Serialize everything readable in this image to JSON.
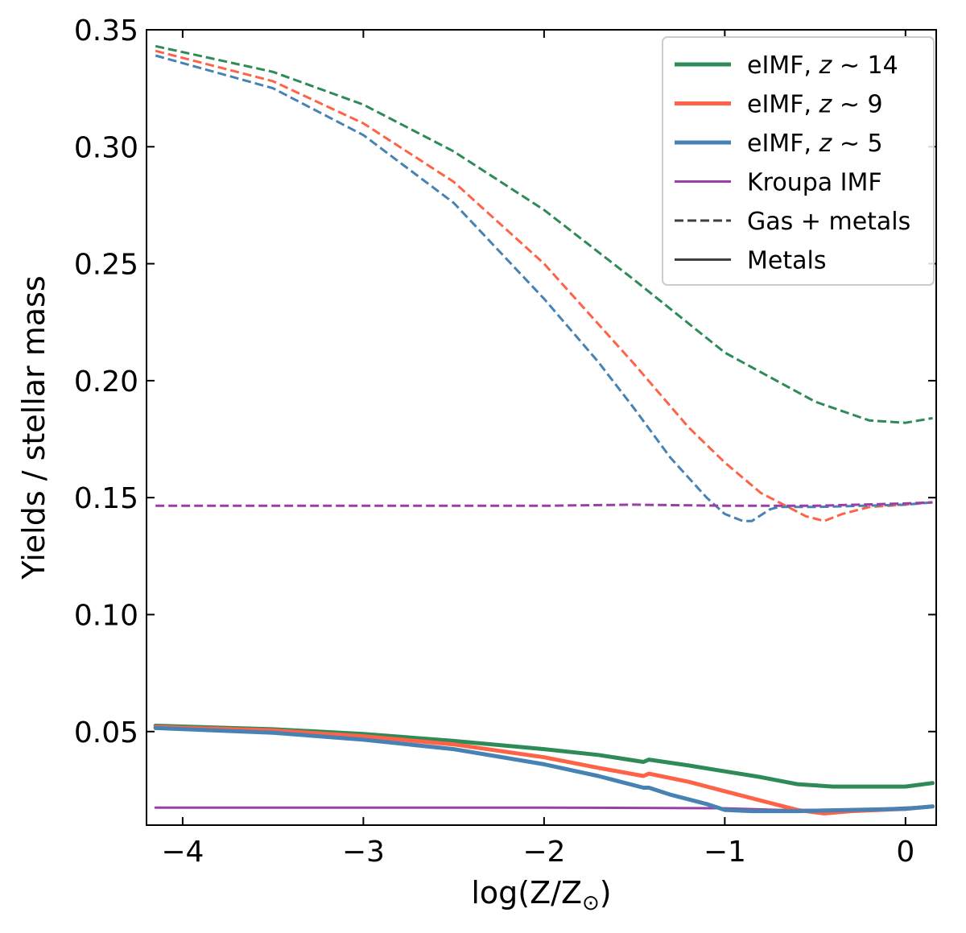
{
  "chart_data": {
    "type": "line",
    "xlabel": "log(Z/Z",
    "xlabel_sub": "⊙",
    "xlabel_close": ")",
    "ylabel": "Yields / stellar mass",
    "xlim": [
      -4.2,
      0.17
    ],
    "ylim": [
      0.01,
      0.35
    ],
    "x_ticks": [
      -4,
      -3,
      -2,
      -1,
      0
    ],
    "x_tick_labels": [
      "−4",
      "−3",
      "−2",
      "−1",
      "0"
    ],
    "y_ticks": [
      0.05,
      0.1,
      0.15,
      0.2,
      0.25,
      0.3,
      0.35
    ],
    "y_tick_labels": [
      "0.05",
      "0.10",
      "0.15",
      "0.20",
      "0.25",
      "0.30",
      "0.35"
    ],
    "legend": {
      "placement": "top-right",
      "entries": [
        {
          "prefix": "eIMF, ",
          "italic": "z",
          "suffix": " ∼ 14",
          "color": "#2e8b57",
          "style": "solid-thick"
        },
        {
          "prefix": "eIMF, ",
          "italic": "z",
          "suffix": " ∼ 9",
          "color": "#ff6347",
          "style": "solid-thick"
        },
        {
          "prefix": "eIMF, ",
          "italic": "z",
          "suffix": " ∼ 5",
          "color": "#4682b4",
          "style": "solid-thick"
        },
        {
          "prefix": "Kroupa IMF",
          "italic": "",
          "suffix": "",
          "color": "#9b3fa8",
          "style": "solid-thin"
        },
        {
          "prefix": "Gas + metals",
          "italic": "",
          "suffix": "",
          "color": "#404040",
          "style": "dashed"
        },
        {
          "prefix": "Metals",
          "italic": "",
          "suffix": "",
          "color": "#404040",
          "style": "solid"
        }
      ]
    },
    "series": [
      {
        "id": "z14-gas",
        "color": "#2e8b57",
        "dash": true,
        "width": 3,
        "x": [
          -4.15,
          -3.5,
          -3.0,
          -2.5,
          -2.0,
          -1.5,
          -1.0,
          -0.5,
          -0.2,
          0.0,
          0.15
        ],
        "y": [
          0.343,
          0.332,
          0.318,
          0.298,
          0.273,
          0.243,
          0.212,
          0.191,
          0.183,
          0.182,
          0.184
        ]
      },
      {
        "id": "z9-gas",
        "color": "#ff6347",
        "dash": true,
        "width": 3,
        "x": [
          -4.15,
          -3.5,
          -3.0,
          -2.5,
          -2.0,
          -1.5,
          -1.2,
          -1.0,
          -0.8,
          -0.65,
          -0.55,
          -0.45,
          -0.35,
          -0.2,
          0.0,
          0.15
        ],
        "y": [
          0.341,
          0.328,
          0.31,
          0.285,
          0.25,
          0.207,
          0.18,
          0.165,
          0.152,
          0.146,
          0.142,
          0.14,
          0.143,
          0.146,
          0.147,
          0.148
        ]
      },
      {
        "id": "z5-gas",
        "color": "#4682b4",
        "dash": true,
        "width": 3,
        "x": [
          -4.15,
          -3.5,
          -3.0,
          -2.5,
          -2.0,
          -1.7,
          -1.5,
          -1.3,
          -1.1,
          -1.0,
          -0.9,
          -0.85,
          -0.75,
          -0.7,
          -0.5,
          0.0,
          0.15
        ],
        "y": [
          0.339,
          0.325,
          0.305,
          0.276,
          0.235,
          0.208,
          0.188,
          0.167,
          0.15,
          0.143,
          0.14,
          0.14,
          0.145,
          0.146,
          0.146,
          0.147,
          0.148
        ]
      },
      {
        "id": "kroupa-gas",
        "color": "#9b3fa8",
        "dash": true,
        "width": 3,
        "x": [
          -4.15,
          -3.0,
          -2.0,
          -1.5,
          -1.0,
          -0.5,
          0.0,
          0.15
        ],
        "y": [
          0.1465,
          0.1465,
          0.1465,
          0.147,
          0.1465,
          0.1465,
          0.1475,
          0.148
        ]
      },
      {
        "id": "kroupa-metals",
        "color": "#9b3fa8",
        "dash": false,
        "width": 3,
        "x": [
          -4.15,
          -3.0,
          -2.0,
          -1.0,
          -0.7,
          -0.5,
          -0.2,
          0.0,
          0.15
        ],
        "y": [
          0.0175,
          0.0175,
          0.0175,
          0.0172,
          0.0165,
          0.0165,
          0.0168,
          0.0175,
          0.018
        ]
      },
      {
        "id": "z14-metals",
        "color": "#2e8b57",
        "dash": false,
        "width": 5,
        "x": [
          -4.15,
          -3.5,
          -3.0,
          -2.5,
          -2.0,
          -1.7,
          -1.45,
          -1.42,
          -1.2,
          -1.0,
          -0.8,
          -0.6,
          -0.4,
          -0.2,
          0.0,
          0.15
        ],
        "y": [
          0.0525,
          0.051,
          0.049,
          0.046,
          0.0425,
          0.04,
          0.037,
          0.038,
          0.0355,
          0.033,
          0.0305,
          0.0275,
          0.0265,
          0.0265,
          0.0265,
          0.028
        ]
      },
      {
        "id": "z9-metals",
        "color": "#ff6347",
        "dash": false,
        "width": 5,
        "x": [
          -4.15,
          -3.5,
          -3.0,
          -2.5,
          -2.0,
          -1.7,
          -1.45,
          -1.42,
          -1.2,
          -1.0,
          -0.8,
          -0.6,
          -0.45,
          -0.3,
          0.0,
          0.15
        ],
        "y": [
          0.052,
          0.0505,
          0.048,
          0.0445,
          0.039,
          0.0345,
          0.031,
          0.032,
          0.0285,
          0.0245,
          0.0205,
          0.0165,
          0.015,
          0.016,
          0.017,
          0.018
        ]
      },
      {
        "id": "z5-metals",
        "color": "#4682b4",
        "dash": false,
        "width": 5,
        "x": [
          -4.15,
          -3.5,
          -3.0,
          -2.5,
          -2.0,
          -1.7,
          -1.45,
          -1.42,
          -1.3,
          -1.1,
          -1.0,
          -0.85,
          -0.6,
          -0.3,
          0.0,
          0.15
        ],
        "y": [
          0.0515,
          0.0495,
          0.0465,
          0.0425,
          0.036,
          0.031,
          0.026,
          0.026,
          0.023,
          0.019,
          0.0165,
          0.016,
          0.016,
          0.0165,
          0.017,
          0.018
        ]
      }
    ]
  }
}
